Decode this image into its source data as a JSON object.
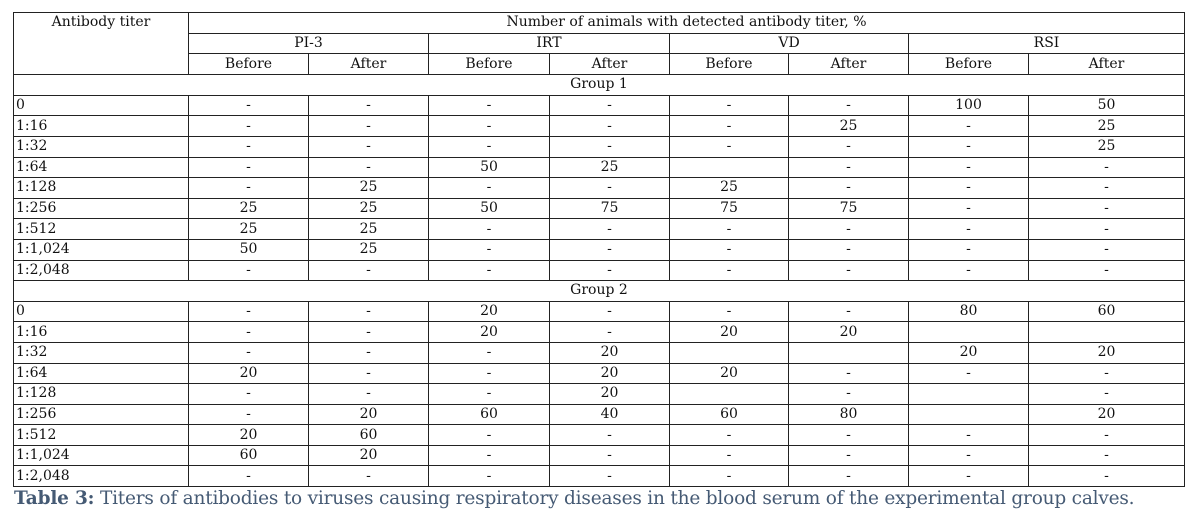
{
  "table": {
    "header": {
      "titer_label": "Antibody titer",
      "group_label": "Number of animals with detected antibody titer, %",
      "viruses": [
        "PI-3",
        "IRT",
        "VD",
        "RSI"
      ],
      "before": "Before",
      "after": "After"
    },
    "groups": [
      {
        "label": "Group 1",
        "rows": [
          {
            "titer": "0",
            "values": [
              "-",
              "-",
              "-",
              "-",
              "-",
              "-",
              "100",
              "50"
            ]
          },
          {
            "titer": "1:16",
            "values": [
              "-",
              "-",
              "-",
              "-",
              "-",
              "25",
              "-",
              "25"
            ]
          },
          {
            "titer": "1:32",
            "values": [
              "-",
              "-",
              "-",
              "-",
              "-",
              "-",
              "-",
              "25"
            ]
          },
          {
            "titer": "1:64",
            "values": [
              "-",
              "-",
              "50",
              "25",
              "",
              "-",
              "-",
              "-"
            ]
          },
          {
            "titer": "1:128",
            "values": [
              "-",
              "25",
              "-",
              "-",
              "25",
              "-",
              "-",
              "-"
            ]
          },
          {
            "titer": "1:256",
            "values": [
              "25",
              "25",
              "50",
              "75",
              "75",
              "75",
              "-",
              "-"
            ]
          },
          {
            "titer": "1:512",
            "values": [
              "25",
              "25",
              "-",
              "-",
              "-",
              "-",
              "-",
              "-"
            ]
          },
          {
            "titer": "1:1,024",
            "values": [
              "50",
              "25",
              "-",
              "-",
              "-",
              "-",
              "-",
              "-"
            ]
          },
          {
            "titer": "1:2,048",
            "values": [
              "-",
              "-",
              "-",
              "-",
              "-",
              "-",
              "-",
              "-"
            ]
          }
        ]
      },
      {
        "label": "Group 2",
        "rows": [
          {
            "titer": "0",
            "values": [
              "-",
              "-",
              "20",
              "-",
              "-",
              "-",
              "80",
              "60"
            ]
          },
          {
            "titer": "1:16",
            "values": [
              "-",
              "-",
              "20",
              "-",
              "20",
              "20",
              "",
              ""
            ]
          },
          {
            "titer": "1:32",
            "values": [
              "-",
              "-",
              "-",
              "20",
              "",
              "",
              "20",
              "20"
            ]
          },
          {
            "titer": "1:64",
            "values": [
              "20",
              "-",
              "-",
              "20",
              "20",
              "-",
              "-",
              "-"
            ]
          },
          {
            "titer": "1:128",
            "values": [
              "-",
              "-",
              "-",
              "20",
              "",
              "-",
              "",
              "-"
            ]
          },
          {
            "titer": "1:256",
            "values": [
              "-",
              "20",
              "60",
              "40",
              "60",
              "80",
              "",
              "20"
            ]
          },
          {
            "titer": "1:512",
            "values": [
              "20",
              "60",
              "-",
              "-",
              "-",
              "-",
              "-",
              "-"
            ]
          },
          {
            "titer": "1:1,024",
            "values": [
              "60",
              "20",
              "-",
              "-",
              "-",
              "-",
              "-",
              "-"
            ]
          },
          {
            "titer": "1:2,048",
            "values": [
              "-",
              "-",
              "-",
              "-",
              "-",
              "-",
              "-",
              "-"
            ]
          }
        ]
      }
    ]
  },
  "caption": {
    "label": "Table 3:",
    "text": " Titers of antibodies to viruses causing respiratory diseases in the blood serum of the experimental group calves."
  },
  "colors": {
    "caption": "#455a74",
    "border": "#222222"
  }
}
